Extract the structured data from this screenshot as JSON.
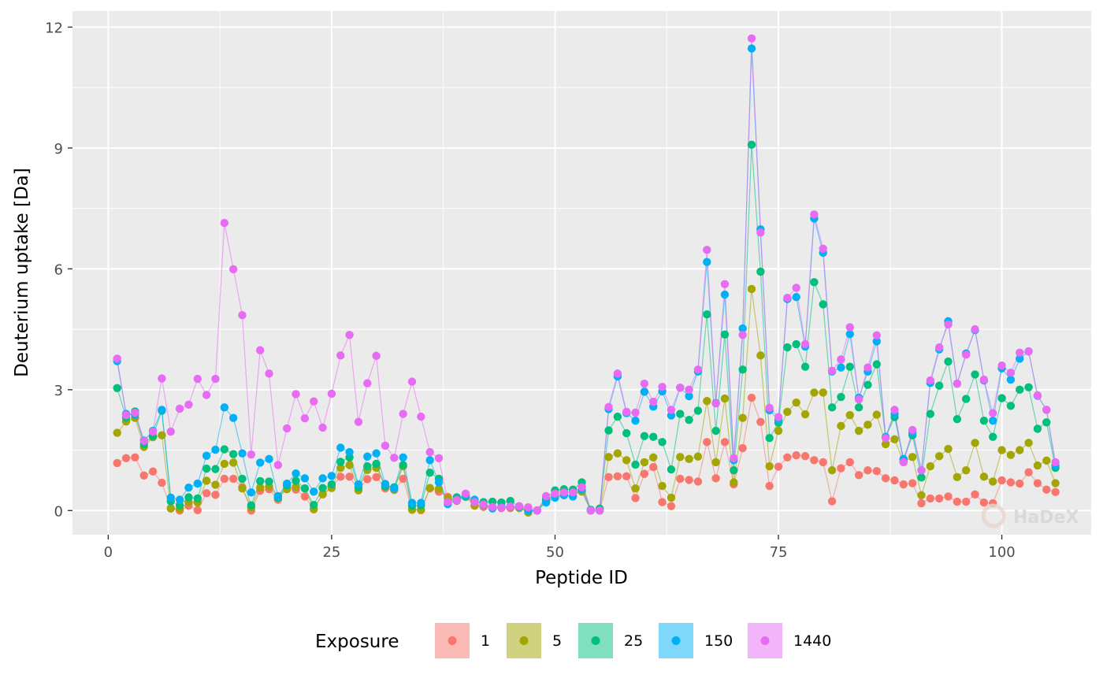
{
  "chart_data": {
    "type": "line",
    "xlabel": "Peptide ID",
    "ylabel": "Deuterium uptake [Da]",
    "xlim": [
      -4,
      110
    ],
    "ylim": [
      -0.6,
      12.4
    ],
    "xticks": [
      0,
      25,
      50,
      75,
      100
    ],
    "yticks": [
      0,
      3,
      6,
      9,
      12
    ],
    "grid": true,
    "legend_title": "Exposure",
    "legend_position": "bottom",
    "watermark": "HaDeX",
    "series": [
      {
        "name": "1",
        "color": "#F8766D",
        "values": [
          1.18,
          1.3,
          1.32,
          0.87,
          0.97,
          0.69,
          0.06,
          0.0,
          0.12,
          0.01,
          0.43,
          0.39,
          0.79,
          0.79,
          0.58,
          0.0,
          0.49,
          0.53,
          0.27,
          0.6,
          0.52,
          0.35,
          0.03,
          0.41,
          0.58,
          0.84,
          0.84,
          0.51,
          0.78,
          0.83,
          0.55,
          0.51,
          0.79,
          0.02,
          0.01,
          0.55,
          0.47,
          0.34,
          0.24,
          0.34,
          0.12,
          0.09,
          0.06,
          0.06,
          0.06,
          0.06,
          0.0,
          0.0,
          0.26,
          0.37,
          0.39,
          0.36,
          0.6,
          0.0,
          0.0,
          0.83,
          0.85,
          0.85,
          0.31,
          0.91,
          1.08,
          0.21,
          0.11,
          0.79,
          0.76,
          0.72,
          1.7,
          0.8,
          1.7,
          0.65,
          1.55,
          2.8,
          2.2,
          0.61,
          1.09,
          1.32,
          1.37,
          1.35,
          1.25,
          1.2,
          0.23,
          1.05,
          1.2,
          0.88,
          1.0,
          0.98,
          0.8,
          0.75,
          0.65,
          0.68,
          0.18,
          0.3,
          0.3,
          0.35,
          0.22,
          0.22,
          0.4,
          0.2,
          0.18,
          0.75,
          0.7,
          0.67,
          0.95,
          0.68,
          0.52,
          0.46
        ]
      },
      {
        "name": "5",
        "color": "#A3A500",
        "values": [
          1.93,
          2.21,
          2.3,
          1.58,
          1.82,
          1.87,
          0.05,
          0.04,
          0.21,
          0.2,
          0.74,
          0.64,
          1.16,
          1.19,
          0.55,
          0.08,
          0.57,
          0.6,
          0.32,
          0.53,
          0.59,
          0.55,
          0.04,
          0.4,
          0.56,
          1.06,
          1.13,
          0.5,
          1.01,
          1.06,
          0.6,
          0.52,
          1.1,
          0.02,
          0.02,
          0.56,
          0.54,
          0.3,
          0.26,
          0.37,
          0.13,
          0.13,
          0.09,
          0.09,
          0.09,
          0.07,
          -0.05,
          0.0,
          0.24,
          0.4,
          0.47,
          0.45,
          0.47,
          0.0,
          0.0,
          1.33,
          1.42,
          1.25,
          0.55,
          1.2,
          1.32,
          0.61,
          0.32,
          1.33,
          1.28,
          1.34,
          2.72,
          1.2,
          2.78,
          0.7,
          2.3,
          5.5,
          3.85,
          1.1,
          1.98,
          2.45,
          2.68,
          2.39,
          2.93,
          2.93,
          1.0,
          2.1,
          2.37,
          1.98,
          2.13,
          2.38,
          1.65,
          1.77,
          1.2,
          1.33,
          0.38,
          1.1,
          1.35,
          1.53,
          0.83,
          1.0,
          1.68,
          0.84,
          0.72,
          1.5,
          1.38,
          1.5,
          1.68,
          1.12,
          1.24,
          0.68
        ]
      },
      {
        "name": "25",
        "color": "#00BF7D",
        "values": [
          3.04,
          2.31,
          2.46,
          1.65,
          1.85,
          2.48,
          0.23,
          0.13,
          0.33,
          0.3,
          1.04,
          1.03,
          1.52,
          1.4,
          0.79,
          0.13,
          0.73,
          0.72,
          0.32,
          0.63,
          0.74,
          0.55,
          0.14,
          0.56,
          0.65,
          1.21,
          1.32,
          0.58,
          1.1,
          1.16,
          0.6,
          0.58,
          1.13,
          0.12,
          0.13,
          0.94,
          0.79,
          0.2,
          0.33,
          0.35,
          0.22,
          0.21,
          0.22,
          0.2,
          0.24,
          0.1,
          0.0,
          0.0,
          0.3,
          0.5,
          0.53,
          0.52,
          0.7,
          0.02,
          0.05,
          1.99,
          2.33,
          1.92,
          1.14,
          1.85,
          1.83,
          1.7,
          1.02,
          2.4,
          2.25,
          2.48,
          4.87,
          1.98,
          4.37,
          1.0,
          3.5,
          9.08,
          5.93,
          1.8,
          2.18,
          4.05,
          4.13,
          3.57,
          5.67,
          5.12,
          2.56,
          2.82,
          3.57,
          2.56,
          3.12,
          3.63,
          1.81,
          2.32,
          1.25,
          1.87,
          0.82,
          2.4,
          3.1,
          3.7,
          2.27,
          2.77,
          3.38,
          2.23,
          1.83,
          2.79,
          2.6,
          3.0,
          3.06,
          2.03,
          2.19,
          1.06
        ]
      },
      {
        "name": "150",
        "color": "#00B0F6",
        "values": [
          3.71,
          2.4,
          2.38,
          1.74,
          1.98,
          2.5,
          0.32,
          0.27,
          0.57,
          0.67,
          1.36,
          1.51,
          2.56,
          2.3,
          1.42,
          0.45,
          1.19,
          1.28,
          0.36,
          0.67,
          0.92,
          0.8,
          0.47,
          0.8,
          0.86,
          1.56,
          1.45,
          0.65,
          1.34,
          1.42,
          0.66,
          0.55,
          1.32,
          0.19,
          0.19,
          1.25,
          0.7,
          0.16,
          0.26,
          0.38,
          0.27,
          0.14,
          0.05,
          0.09,
          0.1,
          0.09,
          0.0,
          0.0,
          0.2,
          0.32,
          0.38,
          0.35,
          0.52,
          0.0,
          0.0,
          2.52,
          3.33,
          2.42,
          2.23,
          2.95,
          2.58,
          2.96,
          2.36,
          3.05,
          2.84,
          3.45,
          6.17,
          2.67,
          5.36,
          1.25,
          4.52,
          11.47,
          6.98,
          2.49,
          2.25,
          5.25,
          5.3,
          4.07,
          7.25,
          6.4,
          3.45,
          3.55,
          4.38,
          2.8,
          3.45,
          4.2,
          1.83,
          2.4,
          1.28,
          1.93,
          1.0,
          3.17,
          4.0,
          4.7,
          3.15,
          3.9,
          4.48,
          3.23,
          2.23,
          3.53,
          3.25,
          3.77,
          3.95,
          2.85,
          2.5,
          1.12
        ]
      },
      {
        "name": "1440",
        "color": "#E76BF3",
        "values": [
          3.77,
          2.37,
          2.43,
          1.73,
          1.96,
          3.28,
          1.96,
          2.53,
          2.63,
          3.27,
          2.87,
          3.27,
          7.14,
          5.99,
          4.85,
          1.39,
          3.98,
          3.4,
          1.13,
          2.04,
          2.89,
          2.29,
          2.71,
          2.06,
          2.9,
          3.85,
          4.36,
          2.2,
          3.16,
          3.84,
          1.61,
          1.31,
          2.4,
          3.2,
          2.33,
          1.45,
          1.3,
          0.21,
          0.26,
          0.42,
          0.21,
          0.15,
          0.09,
          0.07,
          0.1,
          0.11,
          0.08,
          0.0,
          0.36,
          0.42,
          0.45,
          0.45,
          0.58,
          0.0,
          0.0,
          2.57,
          3.4,
          2.45,
          2.43,
          3.15,
          2.7,
          3.07,
          2.5,
          3.05,
          3.0,
          3.5,
          6.47,
          2.66,
          5.62,
          1.3,
          4.36,
          11.72,
          6.9,
          2.55,
          2.32,
          5.28,
          5.53,
          4.13,
          7.35,
          6.5,
          3.47,
          3.75,
          4.55,
          2.76,
          3.55,
          4.35,
          1.8,
          2.5,
          1.2,
          2.0,
          1.0,
          3.23,
          4.05,
          4.62,
          3.15,
          3.87,
          4.5,
          3.25,
          2.42,
          3.6,
          3.42,
          3.92,
          3.95,
          2.86,
          2.5,
          1.2
        ]
      }
    ]
  }
}
